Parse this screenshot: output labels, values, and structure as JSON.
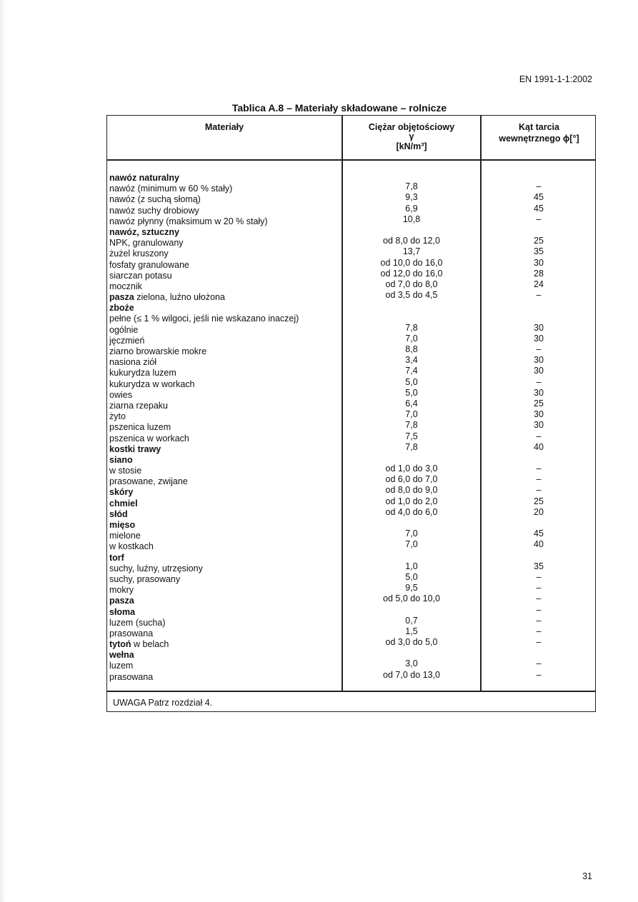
{
  "header": {
    "doc_id": "EN 1991-1-1:2002"
  },
  "table": {
    "title": "Tablica A.8 – Materiały składowane – rolnicze",
    "columns": {
      "materials": "Materiały",
      "weight_line1": "Ciężar objętościowy",
      "weight_symbol": "γ",
      "weight_unit": "[kN/m³]",
      "friction_line1": "Kąt tarcia",
      "friction_line2": "wewnętrznego ϕ[°]"
    },
    "rows": [
      {
        "bold": "nawóz naturalny",
        "text": "",
        "weight": "",
        "angle": ""
      },
      {
        "bold": "",
        "text": "nawóz (minimum w 60 % stały)",
        "weight": "7,8",
        "angle": "–"
      },
      {
        "bold": "",
        "text": "nawóz (z suchą słomą)",
        "weight": "9,3",
        "angle": "45"
      },
      {
        "bold": "",
        "text": "nawóz suchy drobiowy",
        "weight": "6,9",
        "angle": "45"
      },
      {
        "bold": "",
        "text": "nawóz płynny (maksimum w 20 % stały)",
        "weight": "10,8",
        "angle": "–"
      },
      {
        "bold": "nawóz, sztuczny",
        "text": "",
        "weight": "",
        "angle": ""
      },
      {
        "bold": "",
        "text": "NPK, granulowany",
        "weight": "od 8,0 do 12,0",
        "angle": "25"
      },
      {
        "bold": "",
        "text": "żużel kruszony",
        "weight": "13,7",
        "angle": "35"
      },
      {
        "bold": "",
        "text": "fosfaty granulowane",
        "weight": "od 10,0 do 16,0",
        "angle": "30"
      },
      {
        "bold": "",
        "text": "siarczan potasu",
        "weight": "od 12,0 do 16,0",
        "angle": "28"
      },
      {
        "bold": "",
        "text": "mocznik",
        "weight": "od 7,0 do 8,0",
        "angle": "24"
      },
      {
        "bold": "pasza",
        "text": " zielona, luźno ułożona",
        "weight": "od 3,5 do 4,5",
        "angle": "–"
      },
      {
        "bold": "zboże",
        "text": "",
        "weight": "",
        "angle": ""
      },
      {
        "bold": "",
        "text": "pełne (≤ 1 % wilgoci, jeśli nie wskazano inaczej)",
        "weight": "",
        "angle": ""
      },
      {
        "bold": "",
        "text": "ogólnie",
        "weight": "7,8",
        "angle": "30"
      },
      {
        "bold": "",
        "text": "jęczmień",
        "weight": "7,0",
        "angle": "30"
      },
      {
        "bold": "",
        "text": "ziarno browarskie mokre",
        "weight": "8,8",
        "angle": "–"
      },
      {
        "bold": "",
        "text": "nasiona ziół",
        "weight": "3,4",
        "angle": "30"
      },
      {
        "bold": "",
        "text": "kukurydza luzem",
        "weight": "7,4",
        "angle": "30"
      },
      {
        "bold": "",
        "text": "kukurydza w workach",
        "weight": "5,0",
        "angle": "–"
      },
      {
        "bold": "",
        "text": "owies",
        "weight": "5,0",
        "angle": "30"
      },
      {
        "bold": "",
        "text": "ziarna rzepaku",
        "weight": "6,4",
        "angle": "25"
      },
      {
        "bold": "",
        "text": "żyto",
        "weight": "7,0",
        "angle": "30"
      },
      {
        "bold": "",
        "text": "pszenica luzem",
        "weight": "7,8",
        "angle": "30"
      },
      {
        "bold": "",
        "text": "pszenica w workach",
        "weight": "7,5",
        "angle": "–"
      },
      {
        "bold": "kostki trawy",
        "text": "",
        "weight": "7,8",
        "angle": "40"
      },
      {
        "bold": "siano",
        "text": "",
        "weight": "",
        "angle": ""
      },
      {
        "bold": "",
        "text": "w stosie",
        "weight": "od 1,0 do 3,0",
        "angle": "–"
      },
      {
        "bold": "",
        "text": "prasowane, zwijane",
        "weight": "od 6,0 do 7,0",
        "angle": "–"
      },
      {
        "bold": "skóry",
        "text": "",
        "weight": "od 8,0 do 9,0",
        "angle": "–"
      },
      {
        "bold": "chmiel",
        "text": "",
        "weight": "od 1,0 do 2,0",
        "angle": "25"
      },
      {
        "bold": "słód",
        "text": "",
        "weight": "od 4,0 do 6,0",
        "angle": "20"
      },
      {
        "bold": "mięso",
        "text": "",
        "weight": "",
        "angle": ""
      },
      {
        "bold": "",
        "text": "mielone",
        "weight": "7,0",
        "angle": "45"
      },
      {
        "bold": "",
        "text": "w kostkach",
        "weight": "7,0",
        "angle": "40"
      },
      {
        "bold": "torf",
        "text": "",
        "weight": "",
        "angle": ""
      },
      {
        "bold": "",
        "text": "suchy, luźny, utrzęsiony",
        "weight": "1,0",
        "angle": "35"
      },
      {
        "bold": "",
        "text": "suchy, prasowany",
        "weight": "5,0",
        "angle": "–"
      },
      {
        "bold": "",
        "text": "mokry",
        "weight": "9,5",
        "angle": "–"
      },
      {
        "bold": "pasza",
        "text": "",
        "weight": "od 5,0 do 10,0",
        "angle": "–"
      },
      {
        "bold": "słoma",
        "text": "",
        "weight": "",
        "angle": "–"
      },
      {
        "bold": "",
        "text": "luzem (sucha)",
        "weight": "0,7",
        "angle": "–"
      },
      {
        "bold": "",
        "text": "prasowana",
        "weight": "1,5",
        "angle": "–"
      },
      {
        "bold": "tytoń",
        "text": " w belach",
        "weight": "od 3,0 do 5,0",
        "angle": "–"
      },
      {
        "bold": "wełna",
        "text": "",
        "weight": "",
        "angle": ""
      },
      {
        "bold": "",
        "text": "luzem",
        "weight": "3,0",
        "angle": "–"
      },
      {
        "bold": "",
        "text": "prasowana",
        "weight": "od 7,0 do 13,0",
        "angle": "–"
      }
    ],
    "note": "UWAGA Patrz rozdział 4."
  },
  "footer": {
    "page_number": "31"
  }
}
